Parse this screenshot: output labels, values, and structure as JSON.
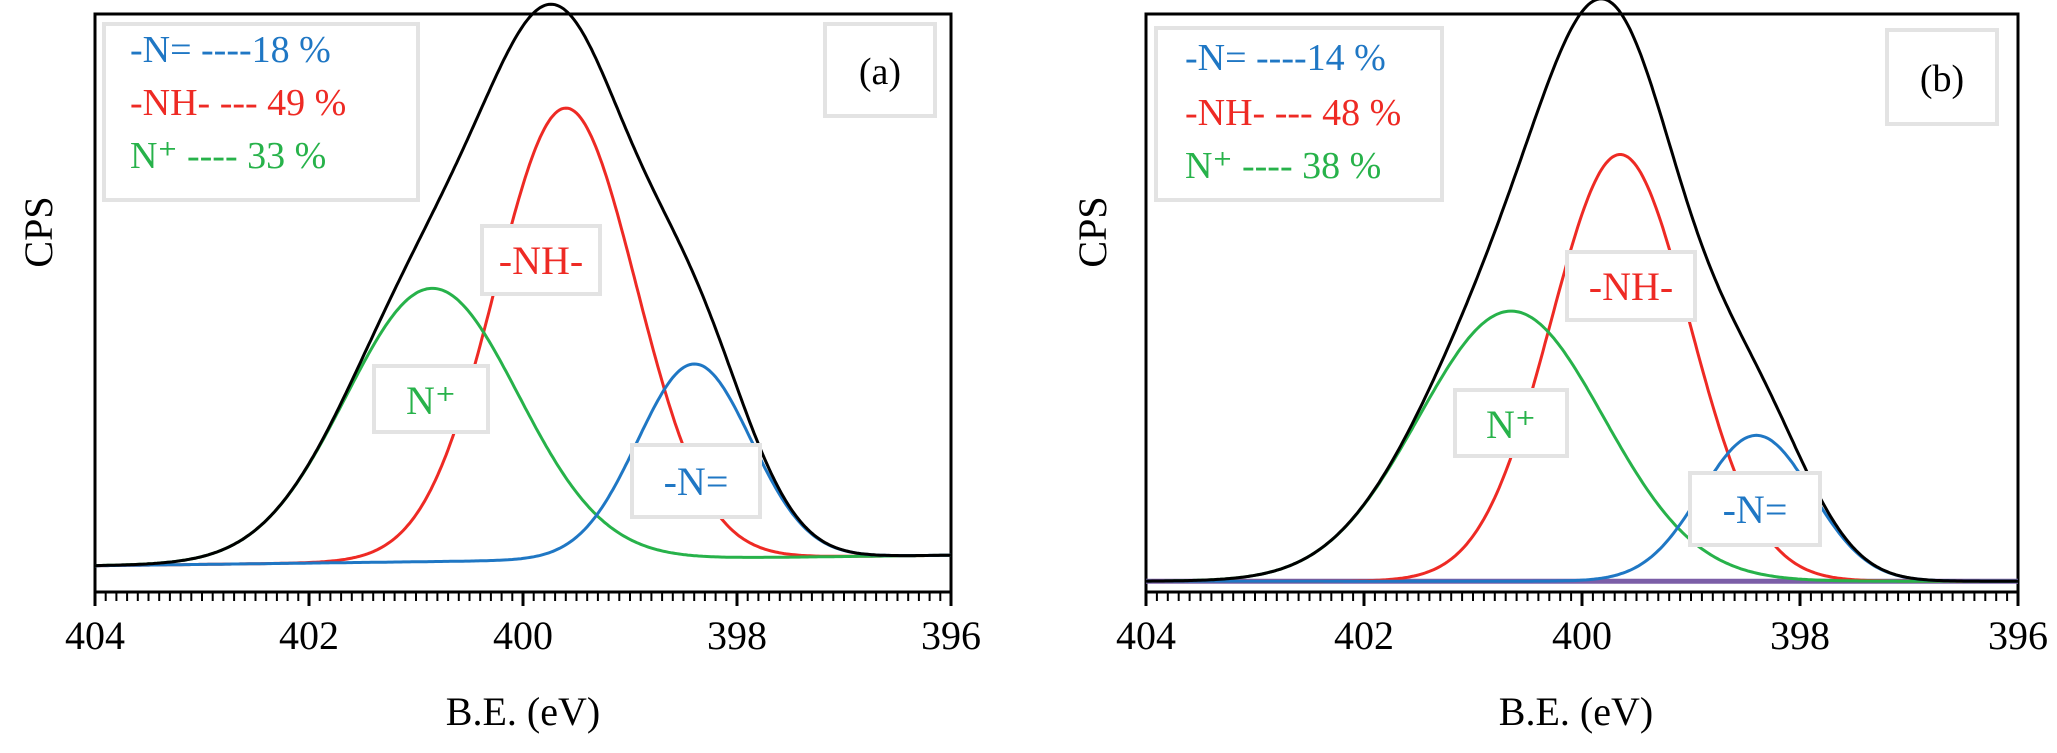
{
  "chart_data": [
    {
      "type": "line",
      "panel": "(a)",
      "xlabel": "B.E. (eV)",
      "ylabel": "CPS",
      "xlim": [
        404,
        396
      ],
      "x_reversed": true,
      "xticks": [
        "404",
        "402",
        "400",
        "398",
        "396"
      ],
      "yticks_shown": false,
      "legend": [
        {
          "text": "-N=  ----18 %",
          "color": "#1f77c4"
        },
        {
          "text": "-NH- --- 49 %",
          "color": "#ee2a24"
        },
        {
          "text": "N⁺ ---- 33 %",
          "color": "#27b24a"
        }
      ],
      "annotations": [
        {
          "text": "-NH-",
          "color": "#ee2a24"
        },
        {
          "text": "N⁺",
          "color": "#27b24a"
        },
        {
          "text": "-N=",
          "color": "#1f77c4"
        }
      ],
      "series": [
        {
          "name": "-NH-",
          "color": "#ee2a24",
          "shape": "gaussian",
          "center": 399.6,
          "fwhm": 1.55,
          "height": 0.86,
          "baseline_start": 0.0,
          "baseline_end": 0.02
        },
        {
          "name": "N⁺",
          "color": "#27b24a",
          "shape": "gaussian",
          "center": 400.85,
          "fwhm": 1.9,
          "height": 0.52,
          "baseline_start": 0.0,
          "baseline_end": 0.02
        },
        {
          "name": "-N=",
          "color": "#1f77c4",
          "shape": "gaussian",
          "center": 398.4,
          "fwhm": 1.25,
          "height": 0.37,
          "baseline_start": 0.0,
          "baseline_end": 0.02
        },
        {
          "name": "envelope",
          "color": "#000000",
          "shape": "sum",
          "baseline_start": 0.0,
          "baseline_end": 0.02
        }
      ],
      "ylim": [
        -0.05,
        1.05
      ]
    },
    {
      "type": "line",
      "panel": "(b)",
      "xlabel": "B.E. (eV)",
      "ylabel": "CPS",
      "xlim": [
        404,
        396
      ],
      "x_reversed": true,
      "xticks": [
        "404",
        "402",
        "400",
        "398",
        "396"
      ],
      "yticks_shown": false,
      "legend": [
        {
          "text": "-N=  ----14 %",
          "color": "#1f77c4"
        },
        {
          "text": "-NH- --- 48 %",
          "color": "#ee2a24"
        },
        {
          "text": "N⁺ ---- 38 %",
          "color": "#27b24a"
        }
      ],
      "annotations": [
        {
          "text": "-NH-",
          "color": "#ee2a24"
        },
        {
          "text": "N⁺",
          "color": "#27b24a"
        },
        {
          "text": "-N=",
          "color": "#1f77c4"
        }
      ],
      "series": [
        {
          "name": "-NH-",
          "color": "#ee2a24",
          "shape": "gaussian",
          "center": 399.65,
          "fwhm": 1.5,
          "height": 0.79,
          "baseline_start": 0.0,
          "baseline_end": 0.0
        },
        {
          "name": "N⁺",
          "color": "#27b24a",
          "shape": "gaussian",
          "center": 400.65,
          "fwhm": 2.0,
          "height": 0.5,
          "baseline_start": 0.0,
          "baseline_end": 0.0
        },
        {
          "name": "-N=",
          "color": "#1f77c4",
          "shape": "gaussian",
          "center": 398.4,
          "fwhm": 1.2,
          "height": 0.27,
          "baseline_start": 0.0,
          "baseline_end": 0.0
        },
        {
          "name": "envelope",
          "color": "#000000",
          "shape": "sum",
          "baseline_start": 0.0,
          "baseline_end": 0.0
        },
        {
          "name": "background",
          "color": "#7b5ea7",
          "shape": "flat",
          "level": 0.0
        }
      ],
      "ylim": [
        -0.02,
        1.05
      ]
    }
  ]
}
